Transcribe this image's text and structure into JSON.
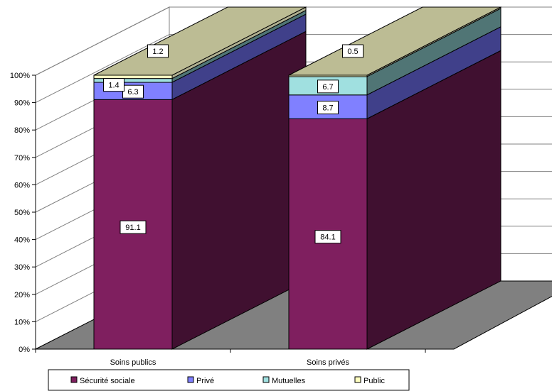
{
  "chart_data": {
    "type": "bar",
    "stacked": true,
    "percent_stacked": true,
    "three_d": true,
    "categories": [
      "Soins publics",
      "Soins privés"
    ],
    "series": [
      {
        "name": "Sécurité sociale",
        "values": [
          91.1,
          84.1
        ],
        "color": "#7F1F5F",
        "side_color": "#401030",
        "labels": [
          "91.1",
          "84.1"
        ]
      },
      {
        "name": "Privé",
        "values": [
          6.3,
          8.7
        ],
        "color": "#8080FF",
        "side_color": "#40408A",
        "labels": [
          "6.3",
          "8.7"
        ]
      },
      {
        "name": "Mutuelles",
        "values": [
          1.4,
          6.7
        ],
        "color": "#A0E0E0",
        "side_color": "#507575",
        "labels": [
          "1.4",
          "6.7"
        ]
      },
      {
        "name": "Public",
        "values": [
          1.2,
          0.5
        ],
        "color": "#FFFFC0",
        "side_color": "#B0B090",
        "labels": [
          "1.2",
          "0.5"
        ]
      }
    ],
    "y_ticks": [
      "0%",
      "10%",
      "20%",
      "30%",
      "40%",
      "50%",
      "60%",
      "70%",
      "80%",
      "90%",
      "100%"
    ],
    "ylim": [
      0,
      100
    ],
    "title": "",
    "xlabel": "",
    "ylabel": "",
    "grid": true,
    "legend_position": "bottom",
    "colors": {
      "wall": "#ffffff",
      "floor": "#808080",
      "top_face": "#BCBC94",
      "grid": "#808080"
    }
  }
}
